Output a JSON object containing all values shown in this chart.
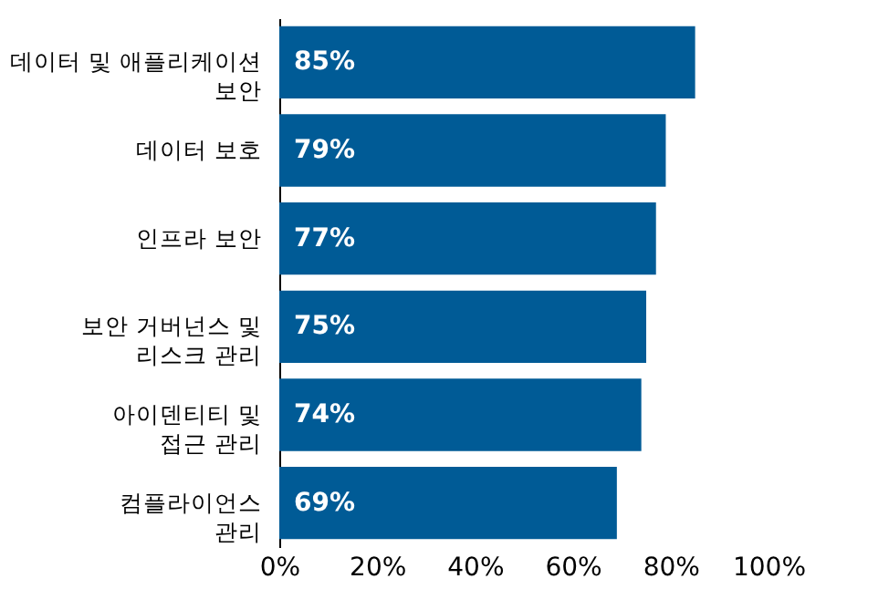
{
  "chart_data": {
    "type": "bar",
    "orientation": "horizontal",
    "categories": [
      "데이터 및 애플리케이션\n보안",
      "데이터 보호",
      "인프라 보안",
      "보안 거버넌스 및\n리스크 관리",
      "아이덴티티 및\n접근 관리",
      "컴플라이언스\n관리"
    ],
    "values": [
      85,
      79,
      77,
      75,
      74,
      69
    ],
    "value_labels": [
      "85%",
      "79%",
      "77%",
      "75%",
      "74%",
      "69%"
    ],
    "color": "#005b96",
    "xlim": [
      0,
      100
    ],
    "xticks": [
      {
        "value": 0,
        "label": "0%"
      },
      {
        "value": 20,
        "label": "20%"
      },
      {
        "value": 40,
        "label": "40%"
      },
      {
        "value": 60,
        "label": "60%"
      },
      {
        "value": 80,
        "label": "80%"
      },
      {
        "value": 100,
        "label": "100%"
      }
    ],
    "grid": false
  }
}
